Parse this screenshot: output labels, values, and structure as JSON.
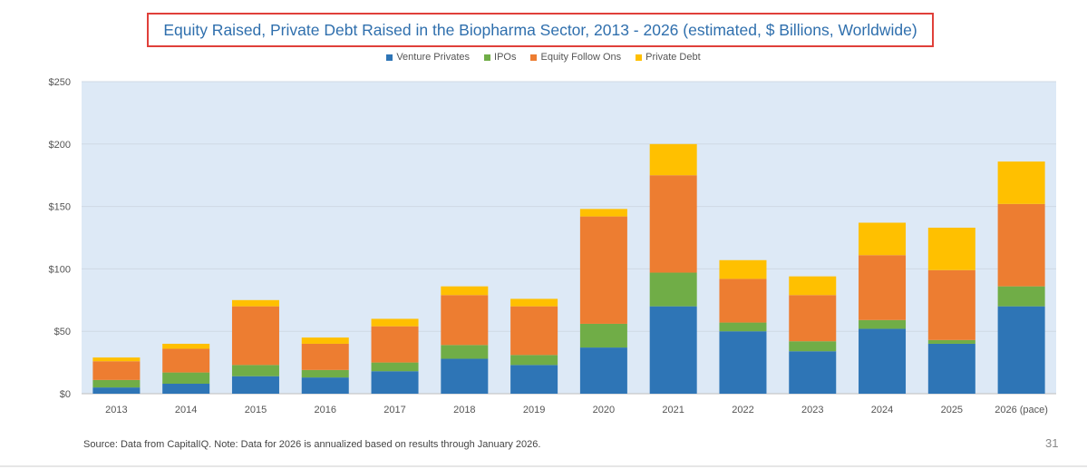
{
  "chart_data": {
    "type": "bar",
    "stacked": true,
    "title": "Equity Raised, Private Debt Raised in the Biopharma Sector, 2013 - 2026 (estimated, $ Billions, Worldwide)",
    "xlabel": "",
    "ylabel": "",
    "ylim": [
      0,
      250
    ],
    "yticks": [
      0,
      50,
      100,
      150,
      200,
      250
    ],
    "ytick_labels": [
      "$0",
      "$50",
      "$100",
      "$150",
      "$200",
      "$250"
    ],
    "grid": true,
    "legend_position": "top-center",
    "categories": [
      "2013",
      "2014",
      "2015",
      "2016",
      "2017",
      "2018",
      "2019",
      "2020",
      "2021",
      "2022",
      "2023",
      "2024",
      "2025",
      "2026 (pace)"
    ],
    "series": [
      {
        "name": "Venture Privates",
        "color": "#2e75b6",
        "values": [
          5,
          8,
          14,
          13,
          18,
          28,
          23,
          37,
          70,
          50,
          34,
          52,
          40,
          70
        ]
      },
      {
        "name": "IPOs",
        "color": "#70ad47",
        "values": [
          6,
          9,
          9,
          6,
          7,
          11,
          8,
          19,
          27,
          7,
          8,
          7,
          3,
          16
        ]
      },
      {
        "name": "Equity Follow Ons",
        "color": "#ed7d31",
        "values": [
          15,
          19,
          47,
          21,
          29,
          40,
          39,
          86,
          78,
          35,
          37,
          52,
          56,
          66
        ]
      },
      {
        "name": "Private Debt",
        "color": "#ffc000",
        "values": [
          3,
          4,
          5,
          5,
          6,
          7,
          6,
          6,
          25,
          15,
          15,
          26,
          34,
          34
        ]
      }
    ]
  },
  "footer": {
    "source": "Source: Data from CapitalIQ. Note: Data for 2026 is annualized based on results through January 2026.",
    "page_number": "31"
  },
  "colors": {
    "title": "#2f6fad",
    "title_border": "#e0403a",
    "plot_bg": "#dde9f6"
  }
}
